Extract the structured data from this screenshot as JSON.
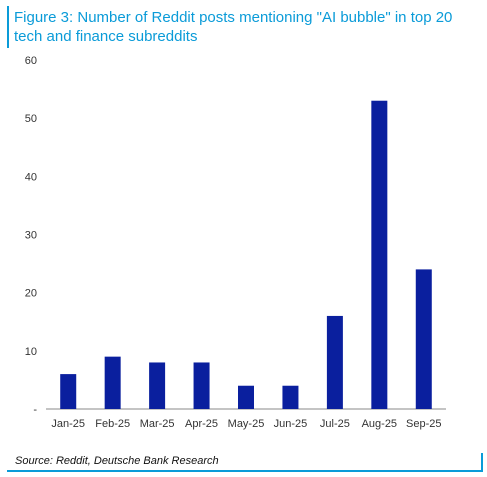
{
  "title": "Figure 3: Number of Reddit posts mentioning \"AI bubble\" in top 20 tech and finance subreddits",
  "source": "Source: Reddit, Deutsche Bank Research",
  "colors": {
    "bar": "#0a1f9e",
    "accent": "#0a9bd8",
    "axis": "#888888",
    "label": "#333333"
  },
  "chart_data": {
    "type": "bar",
    "categories": [
      "Jan-25",
      "Feb-25",
      "Mar-25",
      "Apr-25",
      "May-25",
      "Jun-25",
      "Jul-25",
      "Aug-25",
      "Sep-25"
    ],
    "values": [
      6,
      9,
      8,
      8,
      4,
      4,
      16,
      53,
      24
    ],
    "yticks": [
      "-",
      "10",
      "20",
      "30",
      "40",
      "50",
      "60"
    ],
    "ylim": [
      0,
      60
    ],
    "grid": false
  }
}
